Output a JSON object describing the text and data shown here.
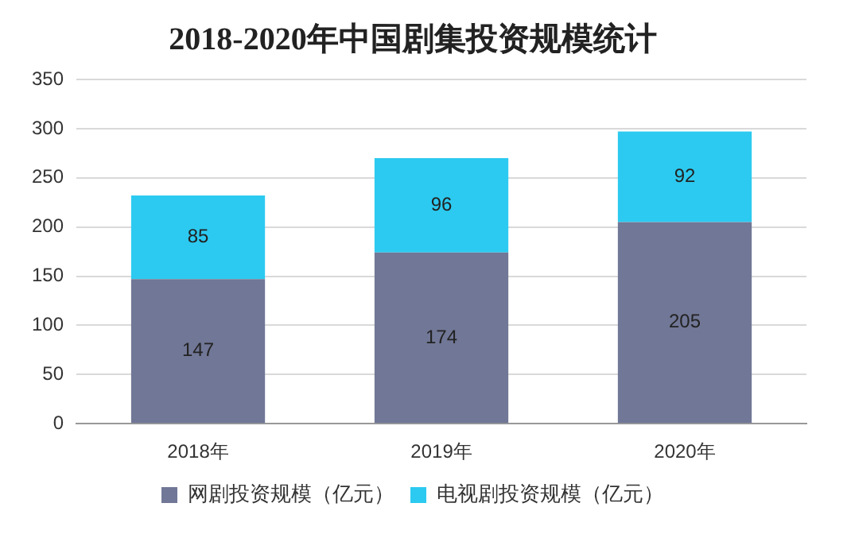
{
  "chart_data": {
    "type": "bar",
    "title": "2018-2020年中国剧集投资规模统计",
    "categories": [
      "2018年",
      "2019年",
      "2020年"
    ],
    "stacked": true,
    "data_labels": true,
    "grid": "y",
    "legend": "bottom",
    "ylim": [
      0,
      350
    ],
    "yticks": [
      0,
      50,
      100,
      150,
      200,
      250,
      300,
      350
    ],
    "series": [
      {
        "name": "网剧投资规模（亿元）",
        "color": "#717796",
        "values": [
          147,
          174,
          205
        ]
      },
      {
        "name": "电视剧投资规模（亿元）",
        "color": "#2ccaf0",
        "values": [
          85,
          96,
          92
        ]
      }
    ]
  }
}
